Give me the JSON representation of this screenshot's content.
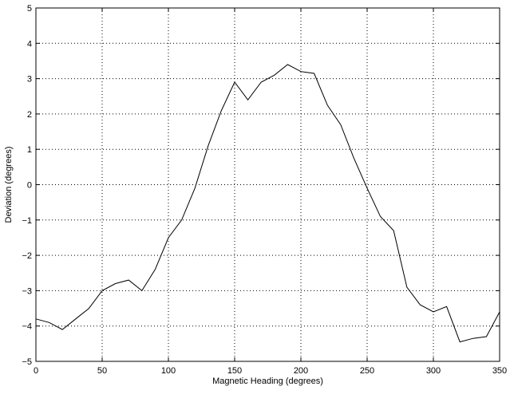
{
  "chart_data": {
    "type": "line",
    "title": "",
    "xlabel": "Magnetic Heading (degrees)",
    "ylabel": "Deviation (degrees)",
    "xlim": [
      0,
      350
    ],
    "ylim": [
      -5,
      5
    ],
    "xticks": [
      0,
      50,
      100,
      150,
      200,
      250,
      300,
      350
    ],
    "yticks": [
      -5,
      -4,
      -3,
      -2,
      -1,
      0,
      1,
      2,
      3,
      4,
      5
    ],
    "xtick_labels": [
      "0",
      "50",
      "100",
      "150",
      "200",
      "250",
      "300",
      "350"
    ],
    "ytick_labels": [
      "−5",
      "−4",
      "−3",
      "−2",
      "−1",
      "0",
      "1",
      "2",
      "3",
      "4",
      "5"
    ],
    "grid": true,
    "grid_style": "dotted",
    "line_color": "#000000",
    "x": [
      0,
      10,
      20,
      30,
      40,
      50,
      60,
      70,
      80,
      90,
      100,
      110,
      120,
      130,
      140,
      150,
      160,
      170,
      180,
      190,
      200,
      210,
      220,
      230,
      240,
      250,
      260,
      270,
      280,
      290,
      300,
      310,
      320,
      330,
      340,
      350
    ],
    "series": [
      {
        "values": [
          -3.8,
          -3.9,
          -4.1,
          -3.8,
          -3.5,
          -3.0,
          -2.8,
          -2.7,
          -3.0,
          -2.4,
          -1.5,
          -1.0,
          -0.1,
          1.1,
          2.1,
          2.9,
          2.4,
          2.9,
          3.1,
          3.4,
          3.2,
          3.15,
          2.25,
          1.7,
          0.75,
          -0.1,
          -0.9,
          -1.3,
          -2.9,
          -3.4,
          -3.6,
          -3.45,
          -4.45,
          -4.35,
          -4.3,
          -3.6
        ]
      }
    ]
  }
}
